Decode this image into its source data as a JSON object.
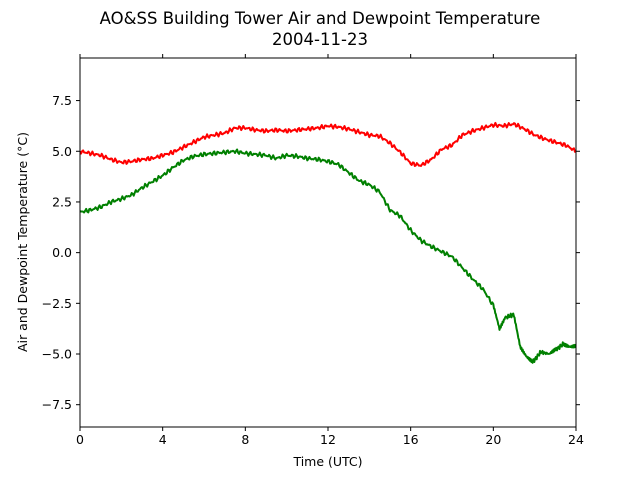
{
  "chart_data": {
    "type": "line",
    "title": "AO&SS Building Tower Air and Dewpoint Temperature",
    "subtitle": "2004-11-23",
    "xlabel": "Time (UTC)",
    "ylabel": "Air and Dewpoint Temperature (°C)",
    "xlim": [
      0,
      24
    ],
    "ylim": [
      -8.6,
      9.6
    ],
    "xticks": [
      "0",
      "4",
      "8",
      "12",
      "16",
      "20",
      "24"
    ],
    "yticks": [
      "7.5",
      "5.0",
      "2.5",
      "0.0",
      "−2.5",
      "−5.0",
      "−7.5"
    ],
    "grid": false,
    "colors": {
      "air": "#ff0000",
      "dewpoint": "#008000"
    },
    "series": [
      {
        "x": [
          0,
          0.5,
          1,
          1.5,
          2,
          2.5,
          3,
          3.5,
          4,
          4.5,
          5,
          5.5,
          6,
          6.5,
          7,
          7.5,
          8,
          8.5,
          9,
          9.5,
          10,
          10.5,
          11,
          11.5,
          12,
          12.5,
          13,
          13.5,
          14,
          14.5,
          15,
          15.5,
          16,
          16.5,
          17,
          17.5,
          18,
          18.5,
          19,
          19.5,
          20,
          20.5,
          21,
          21.5,
          22,
          22.5,
          23,
          23.5,
          24
        ],
        "y": [
          5.0,
          4.9,
          4.8,
          4.6,
          4.45,
          4.5,
          4.6,
          4.65,
          4.8,
          4.95,
          5.2,
          5.45,
          5.7,
          5.8,
          5.9,
          6.15,
          6.15,
          6.05,
          6.0,
          6.05,
          6.0,
          6.05,
          6.1,
          6.15,
          6.25,
          6.2,
          6.1,
          5.95,
          5.8,
          5.75,
          5.4,
          4.95,
          4.4,
          4.3,
          4.6,
          5.1,
          5.3,
          5.8,
          6.0,
          6.15,
          6.3,
          6.25,
          6.35,
          6.1,
          5.8,
          5.6,
          5.45,
          5.3,
          5.0
        ]
      },
      {
        "x": [
          0,
          0.5,
          1,
          1.5,
          2,
          2.5,
          3,
          3.5,
          4,
          4.5,
          5,
          5.5,
          6,
          6.5,
          7,
          7.5,
          8,
          8.5,
          9,
          9.5,
          10,
          10.5,
          11,
          11.5,
          12,
          12.5,
          13,
          13.5,
          14,
          14.5,
          15,
          15.5,
          16,
          16.5,
          17,
          17.5,
          18,
          18.5,
          19,
          19.5,
          20,
          20.3,
          20.6,
          21,
          21.3,
          21.6,
          21.9,
          22.3,
          22.7,
          23,
          23.4,
          23.7,
          24
        ],
        "y": [
          2.0,
          2.1,
          2.25,
          2.5,
          2.65,
          2.85,
          3.2,
          3.5,
          3.8,
          4.2,
          4.55,
          4.75,
          4.85,
          4.9,
          4.95,
          5.0,
          4.9,
          4.85,
          4.8,
          4.65,
          4.8,
          4.75,
          4.65,
          4.6,
          4.5,
          4.35,
          3.95,
          3.55,
          3.35,
          3.0,
          2.1,
          1.8,
          1.1,
          0.6,
          0.3,
          0.05,
          -0.2,
          -0.75,
          -1.3,
          -1.8,
          -2.6,
          -3.8,
          -3.2,
          -3.05,
          -4.6,
          -5.1,
          -5.4,
          -4.9,
          -5.0,
          -4.8,
          -4.5,
          -4.6,
          -4.55
        ]
      }
    ]
  }
}
